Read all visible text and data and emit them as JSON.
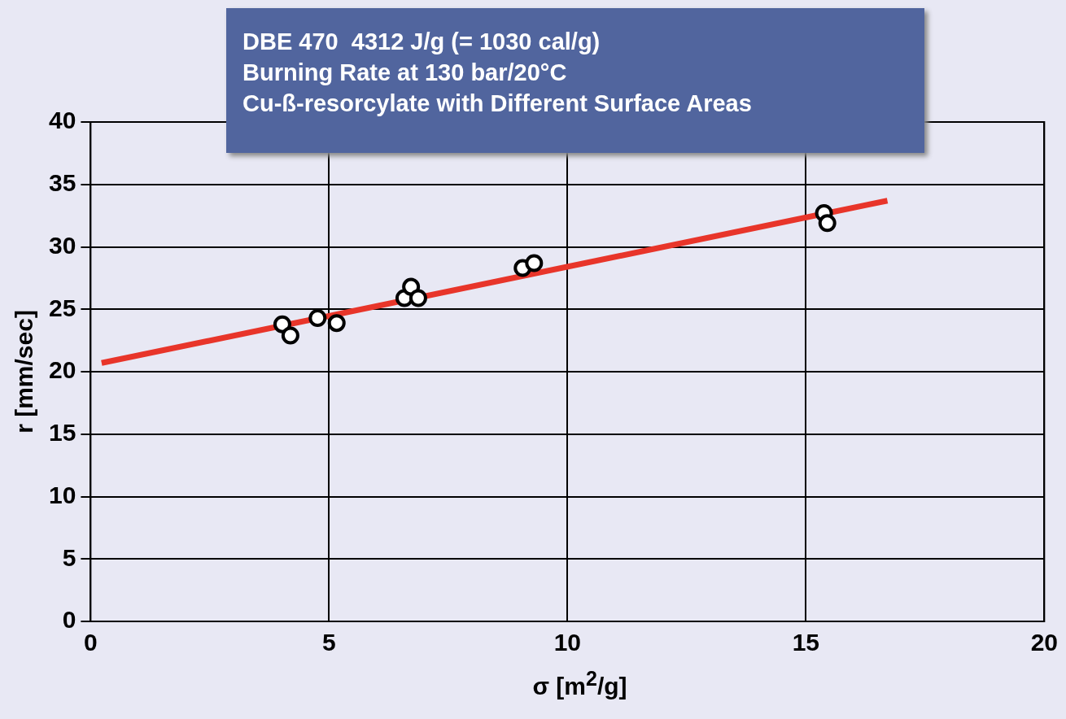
{
  "chart_data": {
    "type": "scatter",
    "title": "DBE 470  4312 J/g (= 1030 cal/g)",
    "subtitle": "Burning Rate at 130 bar/20°C\nCu-ß-resorcylate with Different Surface Areas",
    "xlabel": "σ [m$^{2}$/g]",
    "ylabel": "r [mm/sec]",
    "series": [
      {
        "type": "scatter",
        "marker": "circle",
        "color": "#000000",
        "x": [
          4.02,
          4.19,
          4.76,
          5.16,
          6.58,
          6.72,
          6.87,
          9.06,
          9.3,
          15.38,
          15.45
        ],
        "values": [
          23.8,
          22.9,
          24.3,
          23.9,
          25.9,
          26.8,
          25.9,
          28.3,
          28.7,
          32.7,
          31.9
        ]
      },
      {
        "type": "line",
        "marker": "none",
        "color": "#e8352a",
        "x": [
          0.23,
          16.71
        ],
        "values": [
          20.7,
          33.7
        ]
      }
    ],
    "xlim": [
      0,
      20
    ],
    "xticks": [
      0,
      5,
      10,
      15,
      20
    ],
    "ylim": [
      0,
      40
    ],
    "yticks": [
      0,
      5,
      10,
      15,
      20,
      25,
      30,
      35,
      40
    ],
    "grid": true,
    "legend": false
  }
}
